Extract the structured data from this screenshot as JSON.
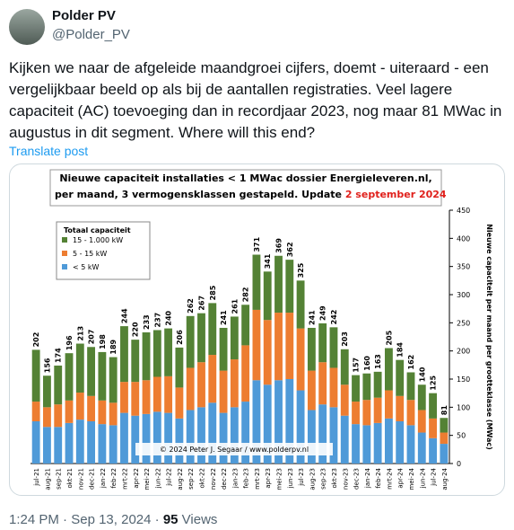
{
  "tweet": {
    "name": "Polder PV",
    "handle": "@Polder_PV",
    "text": "Kijken we naar de afgeleide maandgroei cijfers, doemt - uiteraard - een vergelijkbaar beeld op als bij de aantallen registraties. Veel lagere capaciteit (AC) toevoeging dan in recordjaar 2023, nog maar 81 MWac in augustus in dit segment. Where will this end?",
    "translate": "Translate post",
    "time": "1:24 PM",
    "date": "Sep 13, 2024",
    "views": "95",
    "views_label": "Views",
    "separator": "·"
  },
  "chart_data": {
    "type": "bar",
    "stacked": true,
    "title": "Nieuwe capaciteit installaties  < 1 MWac dossier Energieleveren.nl,",
    "subtitle": "per maand, 3 vermogensklassen  gestapeld. Update",
    "update_date": "2 september 2024",
    "y_axis_label": "Nieuwe capaciteit per maand per grootteklasse (MWac)",
    "legend_title": "Totaal capaciteit",
    "credit": "© 2024 Peter J. Segaar / www.polderpv.nl",
    "categories": [
      "jul-21",
      "aug-21",
      "sep-21",
      "okt-21",
      "nov-21",
      "dec-21",
      "jan-22",
      "feb-22",
      "mrt-22",
      "apr-22",
      "mei-22",
      "jun-22",
      "jul-22",
      "aug-22",
      "sep-22",
      "okt-22",
      "nov-22",
      "dec-22",
      "jan-23",
      "feb-23",
      "mrt-23",
      "apr-23",
      "mei-23",
      "jun-23",
      "jul-23",
      "aug-23",
      "sep-23",
      "okt-23",
      "nov-23",
      "dec-23",
      "jan-24",
      "feb-24",
      "mrt-24",
      "apr-24",
      "mei-24",
      "jun-24",
      "jul-24",
      "aug-24"
    ],
    "series": [
      {
        "name": "< 5 kW",
        "color": "#4f9ad8",
        "values": [
          75,
          65,
          65,
          72,
          78,
          75,
          70,
          68,
          90,
          85,
          88,
          92,
          90,
          80,
          95,
          100,
          108,
          90,
          100,
          110,
          148,
          140,
          148,
          150,
          130,
          95,
          105,
          100,
          85,
          70,
          68,
          72,
          80,
          75,
          68,
          55,
          45,
          35
        ]
      },
      {
        "name": "5 - 15 kW",
        "color": "#ed7d31",
        "values": [
          35,
          35,
          40,
          40,
          48,
          45,
          42,
          40,
          55,
          60,
          60,
          62,
          65,
          55,
          75,
          80,
          85,
          75,
          85,
          100,
          125,
          115,
          120,
          118,
          110,
          70,
          75,
          70,
          55,
          40,
          45,
          45,
          50,
          45,
          45,
          40,
          35,
          20
        ]
      },
      {
        "name": "15 - 1.000 kW",
        "color": "#548235",
        "values": [
          92,
          56,
          69,
          84,
          87,
          87,
          86,
          81,
          99,
          75,
          85,
          83,
          85,
          71,
          92,
          87,
          92,
          76,
          76,
          72,
          98,
          86,
          101,
          94,
          85,
          76,
          69,
          72,
          63,
          47,
          47,
          46,
          75,
          64,
          49,
          45,
          45,
          26
        ]
      }
    ],
    "totals": [
      202,
      156,
      174,
      196,
      213,
      207,
      198,
      189,
      244,
      220,
      233,
      237,
      240,
      206,
      262,
      267,
      285,
      241,
      261,
      282,
      371,
      341,
      369,
      362,
      325,
      241,
      249,
      242,
      203,
      157,
      160,
      163,
      205,
      184,
      162,
      140,
      125,
      81
    ],
    "ylim": [
      0,
      450
    ],
    "yticks": [
      0,
      50,
      100,
      150,
      200,
      250,
      300,
      350,
      400,
      450
    ],
    "y_axis_side": "right",
    "legend_position": "upper left"
  }
}
